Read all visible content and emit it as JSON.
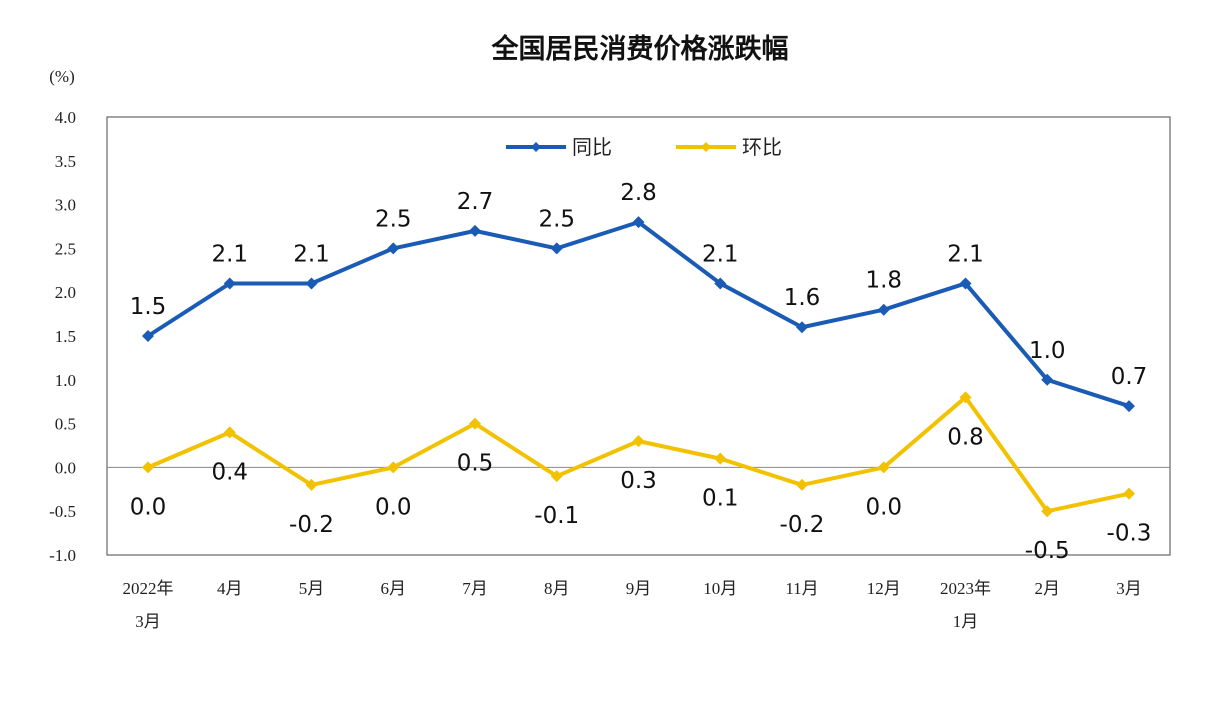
{
  "chart_data": {
    "type": "line",
    "title": "全国居民消费价格涨跌幅",
    "ylabel": "(%)",
    "xlabel": "",
    "ylim": [
      -1.0,
      4.0
    ],
    "yticks": [
      "4.0",
      "3.5",
      "3.0",
      "2.5",
      "2.0",
      "1.5",
      "1.0",
      "0.5",
      "0.0",
      "-0.5",
      "-1.0"
    ],
    "categories": [
      [
        "2022年",
        "3月"
      ],
      [
        "4月"
      ],
      [
        "5月"
      ],
      [
        "6月"
      ],
      [
        "7月"
      ],
      [
        "8月"
      ],
      [
        "9月"
      ],
      [
        "10月"
      ],
      [
        "11月"
      ],
      [
        "12月"
      ],
      [
        "2023年",
        "1月"
      ],
      [
        "2月"
      ],
      [
        "3月"
      ]
    ],
    "legend_position": "top-center",
    "grid": false,
    "series": [
      {
        "name": "同比",
        "color": "#1a5bb5",
        "marker": "diamond",
        "values": [
          1.5,
          2.1,
          2.1,
          2.5,
          2.7,
          2.5,
          2.8,
          2.1,
          1.6,
          1.8,
          2.1,
          1.0,
          0.7
        ]
      },
      {
        "name": "环比",
        "color": "#f2c200",
        "marker": "diamond",
        "values": [
          0.0,
          0.4,
          -0.2,
          0.0,
          0.5,
          -0.1,
          0.3,
          0.1,
          -0.2,
          0.0,
          0.8,
          -0.5,
          -0.3
        ]
      }
    ]
  }
}
